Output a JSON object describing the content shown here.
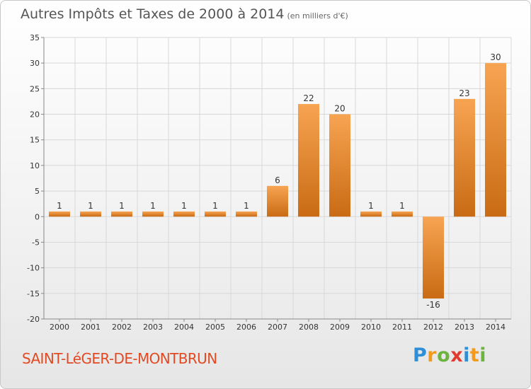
{
  "title": {
    "main": "Autres Impôts et Taxes de 2000 à 2014",
    "unit": "(en milliers d'€)"
  },
  "commune": "SAINT-LéGER-DE-MONTBRUN",
  "logo": {
    "letters": [
      "P",
      "r",
      "o",
      "x",
      "i",
      "t",
      "i"
    ],
    "colors": [
      "#2f8fd6",
      "#f39a1e",
      "#6cb33f",
      "#e23b2e",
      "#2f8fd6",
      "#f39a1e",
      "#6cb33f"
    ]
  },
  "colors": {
    "bar_light": "#f7a452",
    "bar_dark": "#c96b14",
    "grid": "#d8d8d8",
    "axis": "#888888",
    "text": "#333333"
  },
  "chart_data": {
    "type": "bar",
    "categories": [
      "2000",
      "2001",
      "2002",
      "2003",
      "2004",
      "2005",
      "2006",
      "2007",
      "2008",
      "2009",
      "2010",
      "2011",
      "2012",
      "2013",
      "2014"
    ],
    "values": [
      1,
      1,
      1,
      1,
      1,
      1,
      1,
      6,
      22,
      20,
      1,
      1,
      -16,
      23,
      30
    ],
    "data_labels": [
      "1",
      "1",
      "1",
      "1",
      "1",
      "1",
      "1",
      "6",
      "22",
      "20",
      "1",
      "1",
      "-16",
      "23",
      "30"
    ],
    "ylim": [
      -20,
      35
    ],
    "yticks": [
      35,
      30,
      25,
      20,
      15,
      10,
      5,
      0,
      -5,
      -10,
      -15,
      -20
    ],
    "grid": true,
    "legend": "none"
  }
}
